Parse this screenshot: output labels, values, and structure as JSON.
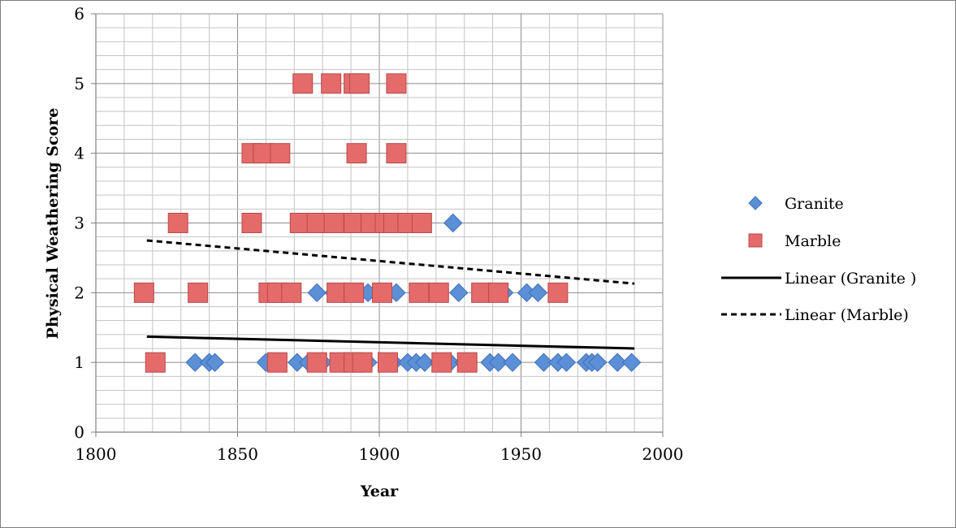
{
  "chart_data": {
    "type": "scatter",
    "title": "",
    "xlabel": "Year",
    "ylabel": "Physical Weathering Score",
    "xlim": [
      1800,
      2000
    ],
    "ylim": [
      0,
      6
    ],
    "x_ticks": [
      "1800",
      "1850",
      "1900",
      "1950",
      "2000"
    ],
    "y_ticks": [
      "0",
      "1",
      "2",
      "3",
      "4",
      "5",
      "6"
    ],
    "grid": true,
    "legend_position": "right",
    "series": [
      {
        "name": "Granite",
        "marker": "diamond",
        "color": "#5b8fd6",
        "points": [
          [
            1835,
            1
          ],
          [
            1840,
            1
          ],
          [
            1842,
            1
          ],
          [
            1860,
            1
          ],
          [
            1871,
            1
          ],
          [
            1875,
            1
          ],
          [
            1880,
            1
          ],
          [
            1888,
            1
          ],
          [
            1890,
            1
          ],
          [
            1893,
            1
          ],
          [
            1896,
            1
          ],
          [
            1905,
            1
          ],
          [
            1910,
            1
          ],
          [
            1913,
            1
          ],
          [
            1916,
            1
          ],
          [
            1921,
            1
          ],
          [
            1925,
            1
          ],
          [
            1930,
            1
          ],
          [
            1939,
            1
          ],
          [
            1942,
            1
          ],
          [
            1947,
            1
          ],
          [
            1958,
            1
          ],
          [
            1963,
            1
          ],
          [
            1966,
            1
          ],
          [
            1973,
            1
          ],
          [
            1975,
            1
          ],
          [
            1977,
            1
          ],
          [
            1984,
            1
          ],
          [
            1989,
            1
          ],
          [
            1878,
            2
          ],
          [
            1884,
            2
          ],
          [
            1891,
            2
          ],
          [
            1896,
            2
          ],
          [
            1906,
            2
          ],
          [
            1915,
            2
          ],
          [
            1928,
            2
          ],
          [
            1944,
            2
          ],
          [
            1952,
            2
          ],
          [
            1956,
            2
          ],
          [
            1900,
            3
          ],
          [
            1926,
            3
          ]
        ]
      },
      {
        "name": "Marble",
        "marker": "square",
        "color": "#e56a6a",
        "points": [
          [
            1821,
            1
          ],
          [
            1864,
            1
          ],
          [
            1878,
            1
          ],
          [
            1886,
            1
          ],
          [
            1891,
            1
          ],
          [
            1894,
            1
          ],
          [
            1903,
            1
          ],
          [
            1922,
            1
          ],
          [
            1931,
            1
          ],
          [
            1817,
            2
          ],
          [
            1836,
            2
          ],
          [
            1861,
            2
          ],
          [
            1864,
            2
          ],
          [
            1869,
            2
          ],
          [
            1885,
            2
          ],
          [
            1891,
            2
          ],
          [
            1901,
            2
          ],
          [
            1914,
            2
          ],
          [
            1921,
            2
          ],
          [
            1936,
            2
          ],
          [
            1942,
            2
          ],
          [
            1963,
            2
          ],
          [
            1829,
            3
          ],
          [
            1855,
            3
          ],
          [
            1872,
            3
          ],
          [
            1878,
            3
          ],
          [
            1884,
            3
          ],
          [
            1891,
            3
          ],
          [
            1897,
            3
          ],
          [
            1902,
            3
          ],
          [
            1905,
            3
          ],
          [
            1910,
            3
          ],
          [
            1915,
            3
          ],
          [
            1855,
            4
          ],
          [
            1859,
            4
          ],
          [
            1865,
            4
          ],
          [
            1892,
            4
          ],
          [
            1906,
            4
          ],
          [
            1873,
            5
          ],
          [
            1883,
            5
          ],
          [
            1891,
            5
          ],
          [
            1893,
            5
          ],
          [
            1906,
            5
          ]
        ]
      }
    ],
    "trendlines": [
      {
        "name": "Linear (Granite )",
        "style": "solid",
        "color": "#000000",
        "x": [
          1818,
          1990
        ],
        "y": [
          1.37,
          1.2
        ]
      },
      {
        "name": "Linear (Marble)",
        "style": "dashed",
        "color": "#000000",
        "x": [
          1818,
          1990
        ],
        "y": [
          2.75,
          2.13
        ]
      }
    ]
  }
}
